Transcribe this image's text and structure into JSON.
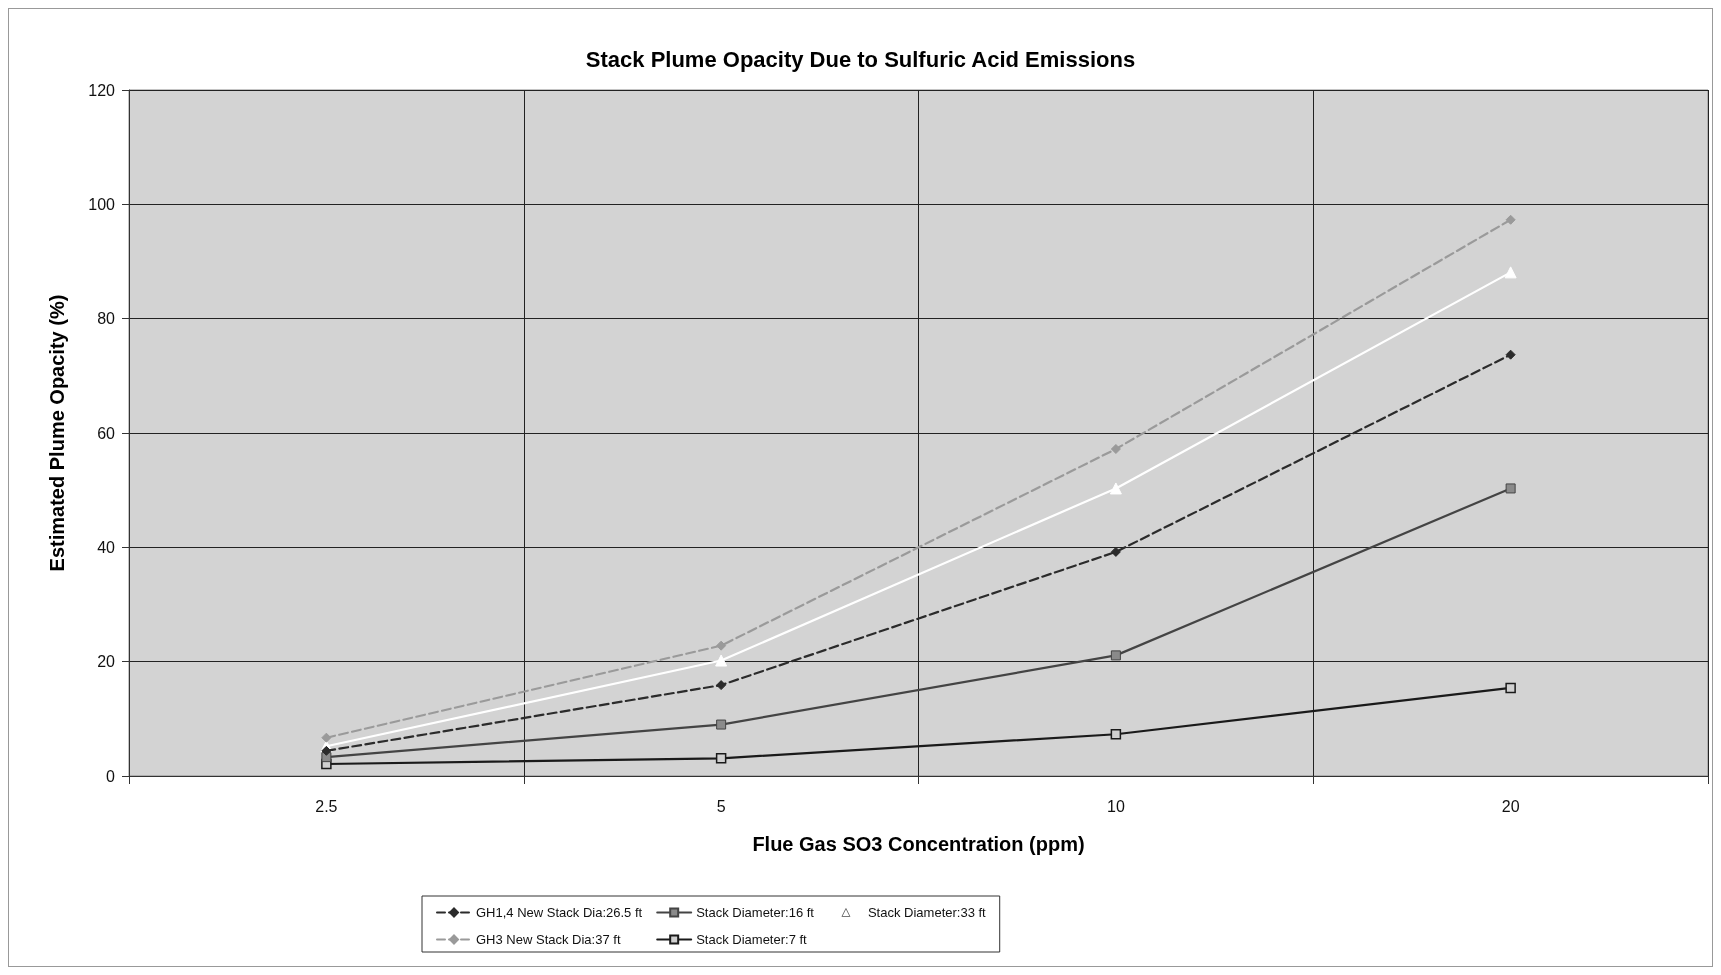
{
  "chart_data": {
    "type": "line",
    "title": "Stack Plume Opacity Due to Sulfuric Acid Emissions",
    "xlabel": "Flue Gas SO3 Concentration (ppm)",
    "ylabel": "Estimated Plume Opacity (%)",
    "categories": [
      "2.5",
      "5",
      "10",
      "20"
    ],
    "ylim": [
      0,
      120
    ],
    "yticks": [
      0,
      20,
      40,
      60,
      80,
      100,
      120
    ],
    "grid": true,
    "legend": "bottom",
    "series": [
      {
        "name": "GH1,4 New Stack Dia:26.5 ft",
        "color": "#2b2b2b",
        "marker": "diamond",
        "line_style": "dashed",
        "values": [
          4.4,
          15.9,
          39.2,
          73.7
        ]
      },
      {
        "name": "GH3 New Stack Dia:37 ft",
        "color": "#9a9a9a",
        "marker": "diamond",
        "line_style": "dashed",
        "values": [
          6.7,
          22.8,
          57.2,
          97.3
        ]
      },
      {
        "name": "Stack Diameter:16 ft",
        "color": "#444444",
        "marker": "square",
        "line_style": "solid",
        "values": [
          3.3,
          9.0,
          21.1,
          50.3
        ]
      },
      {
        "name": "Stack Diameter:7 ft",
        "color": "#1a1a1a",
        "marker": "square",
        "line_style": "solid",
        "values": [
          2.1,
          3.1,
          7.3,
          15.4
        ]
      },
      {
        "name": "Stack Diameter:33 ft",
        "color": "#ffffff",
        "marker": "triangle",
        "line_style": "solid",
        "values": [
          5.2,
          20.2,
          50.3,
          88.1
        ]
      }
    ]
  }
}
